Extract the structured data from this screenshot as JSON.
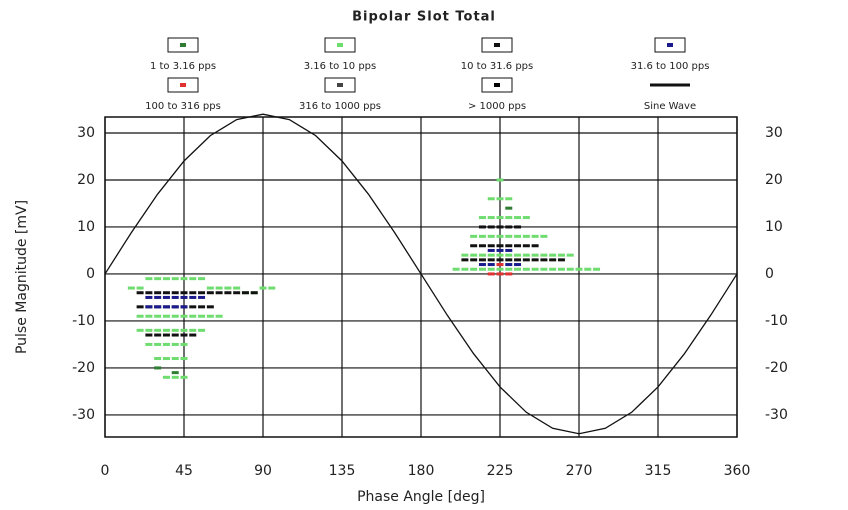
{
  "chart_data": {
    "type": "scatter",
    "title": "Bipolar Slot Total",
    "xlabel": "Phase Angle [deg]",
    "ylabel": "Pulse Magnitude [mV]",
    "xlim": [
      0,
      360
    ],
    "ylim": [
      -34.7,
      33.4
    ],
    "xticks": [
      0,
      45,
      90,
      135,
      180,
      225,
      270,
      315,
      360
    ],
    "yticks": [
      -30,
      -20,
      -10,
      0,
      10,
      20,
      30
    ],
    "grid": true,
    "legend": "top",
    "series": [
      {
        "name": "1 to 3.16 pps",
        "color": "#2f7d32",
        "marker": "square",
        "x": [
          30,
          40,
          230
        ],
        "y": [
          -20,
          -21,
          14
        ]
      },
      {
        "name": "3.16 to 10 pps",
        "color": "#6fdc6f",
        "marker": "square",
        "x": [
          15,
          20,
          25,
          30,
          35,
          40,
          45,
          50,
          55,
          60,
          65,
          70,
          75,
          80,
          85,
          90,
          95,
          20,
          25,
          30,
          35,
          40,
          45,
          50,
          55,
          60,
          65,
          20,
          25,
          30,
          35,
          40,
          45,
          50,
          55,
          25,
          30,
          35,
          40,
          45,
          30,
          35,
          40,
          45,
          35,
          40,
          45,
          200,
          205,
          210,
          215,
          220,
          225,
          230,
          235,
          240,
          245,
          250,
          255,
          260,
          265,
          270,
          275,
          280,
          205,
          210,
          215,
          220,
          225,
          230,
          235,
          240,
          245,
          250,
          255,
          260,
          265,
          210,
          215,
          220,
          225,
          230,
          235,
          240,
          245,
          250,
          215,
          220,
          225,
          230,
          235,
          240,
          220,
          225,
          230,
          225
        ],
        "y": [
          -3,
          -3,
          -1,
          -1,
          -1,
          -1,
          -1,
          -1,
          -1,
          -3,
          -3,
          -3,
          -3,
          -4,
          -4,
          -3,
          -3,
          -9,
          -9,
          -9,
          -9,
          -9,
          -9,
          -9,
          -9,
          -9,
          -9,
          -12,
          -12,
          -12,
          -12,
          -12,
          -12,
          -12,
          -12,
          -15,
          -15,
          -15,
          -15,
          -15,
          -18,
          -18,
          -18,
          -18,
          -22,
          -22,
          -22,
          1,
          1,
          1,
          1,
          1,
          1,
          1,
          1,
          1,
          1,
          1,
          1,
          1,
          1,
          1,
          1,
          1,
          4,
          4,
          4,
          4,
          4,
          4,
          4,
          4,
          4,
          4,
          4,
          4,
          4,
          8,
          8,
          8,
          8,
          8,
          8,
          8,
          8,
          8,
          12,
          12,
          12,
          12,
          12,
          12,
          16,
          16,
          16,
          20
        ]
      },
      {
        "name": "10 to 31.6 pps",
        "color": "#111111",
        "marker": "square",
        "x": [
          20,
          25,
          30,
          35,
          40,
          45,
          50,
          55,
          60,
          65,
          70,
          75,
          80,
          85,
          20,
          25,
          30,
          35,
          40,
          45,
          50,
          55,
          60,
          25,
          30,
          35,
          40,
          45,
          50,
          205,
          210,
          215,
          220,
          225,
          230,
          235,
          240,
          245,
          250,
          255,
          260,
          210,
          215,
          220,
          225,
          230,
          235,
          240,
          245,
          215,
          220,
          225,
          230,
          235
        ],
        "y": [
          -4,
          -4,
          -4,
          -4,
          -4,
          -4,
          -4,
          -4,
          -4,
          -4,
          -4,
          -4,
          -4,
          -4,
          -7,
          -7,
          -7,
          -7,
          -7,
          -7,
          -7,
          -7,
          -7,
          -13,
          -13,
          -13,
          -13,
          -13,
          -13,
          3,
          3,
          3,
          3,
          3,
          3,
          3,
          3,
          3,
          3,
          3,
          3,
          6,
          6,
          6,
          6,
          6,
          6,
          6,
          6,
          10,
          10,
          10,
          10,
          10
        ]
      },
      {
        "name": "31.6 to 100 pps",
        "color": "#1a1a8c",
        "marker": "square",
        "x": [
          25,
          30,
          35,
          40,
          45,
          50,
          55,
          25,
          30,
          35,
          40,
          45,
          215,
          220,
          225,
          230,
          235,
          220,
          225,
          230
        ],
        "y": [
          -5,
          -5,
          -5,
          -5,
          -5,
          -5,
          -5,
          -7,
          -7,
          -7,
          -7,
          -7,
          2,
          2,
          2,
          2,
          2,
          5,
          5,
          5
        ]
      },
      {
        "name": "100 to 316 pps",
        "color": "#e03030",
        "marker": "square",
        "x": [
          220,
          225,
          230,
          225
        ],
        "y": [
          0,
          0,
          0,
          2
        ]
      },
      {
        "name": "316 to 1000 pps",
        "color": "#444444",
        "marker": "square",
        "x": [],
        "y": []
      },
      {
        "name": "> 1000 pps",
        "color": "#000000",
        "marker": "square",
        "x": [],
        "y": []
      },
      {
        "name": "Sine Wave",
        "color": "#111111",
        "marker": "line",
        "x": [
          0,
          15,
          30,
          45,
          60,
          75,
          90,
          105,
          120,
          135,
          150,
          165,
          180,
          195,
          210,
          225,
          240,
          255,
          270,
          285,
          300,
          315,
          330,
          345,
          360
        ],
        "y": [
          0,
          8.8,
          17,
          24.04,
          29.44,
          32.84,
          34,
          32.84,
          29.44,
          24.04,
          17,
          8.8,
          0,
          -8.8,
          -17,
          -24.04,
          -29.44,
          -32.84,
          -34,
          -32.84,
          -29.44,
          -24.04,
          -17,
          -8.8,
          0
        ]
      }
    ]
  }
}
